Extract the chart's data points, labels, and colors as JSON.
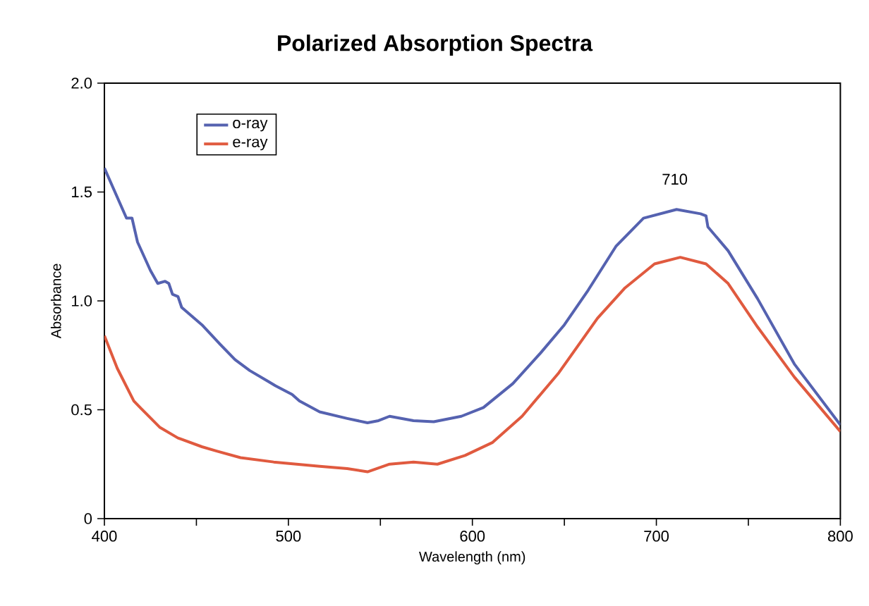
{
  "chart_data": {
    "type": "line",
    "title": "Polarized Absorption Spectra",
    "xlabel": "Wavelength (nm)",
    "ylabel": "Absorbance",
    "xlim": [
      400,
      800
    ],
    "ylim": [
      0,
      2.0
    ],
    "xticks": [
      400,
      {
        "value": 450,
        "label": null
      },
      500,
      {
        "value": 550,
        "label": null
      },
      600,
      {
        "value": 650,
        "label": null
      },
      700,
      {
        "value": 750,
        "label": null
      },
      800
    ],
    "yticks": [
      0,
      0.5,
      {
        "value": 1.0,
        "label": "1.0"
      },
      1.5,
      {
        "value": 2.0,
        "label": "2.0"
      }
    ],
    "legend": "top left",
    "marker": "none",
    "line_style": "solid",
    "grid": false,
    "annotations": [
      {
        "text": "710",
        "x": 710,
        "y": 1.42
      }
    ],
    "series": [
      {
        "name": "o-ray",
        "color": "#5562b0",
        "x": [
          400,
          412,
          415,
          418,
          425,
          429,
          433,
          435,
          437,
          440,
          442,
          453,
          463,
          471,
          479,
          489,
          493,
          502,
          506,
          517,
          532,
          543,
          549,
          555,
          568,
          579,
          594,
          606,
          622,
          637,
          650,
          663,
          678,
          693,
          711,
          724,
          727,
          728,
          739,
          755,
          775,
          800
        ],
        "values": [
          1.61,
          1.38,
          1.38,
          1.27,
          1.14,
          1.08,
          1.09,
          1.08,
          1.03,
          1.02,
          0.97,
          0.89,
          0.8,
          0.73,
          0.68,
          0.63,
          0.61,
          0.57,
          0.54,
          0.49,
          0.46,
          0.44,
          0.45,
          0.47,
          0.45,
          0.445,
          0.47,
          0.51,
          0.62,
          0.76,
          0.89,
          1.05,
          1.25,
          1.38,
          1.42,
          1.4,
          1.39,
          1.34,
          1.23,
          1.01,
          0.71,
          0.43
        ]
      },
      {
        "name": "e-ray",
        "color": "#e05a3f",
        "x": [
          400,
          407,
          416,
          420,
          430,
          440,
          453,
          461,
          474,
          492,
          517,
          532,
          543,
          555,
          568,
          581,
          596,
          611,
          627,
          647,
          668,
          683,
          699,
          713,
          727,
          739,
          755,
          775,
          800
        ],
        "values": [
          0.84,
          0.69,
          0.54,
          0.505,
          0.42,
          0.37,
          0.33,
          0.31,
          0.28,
          0.26,
          0.24,
          0.23,
          0.215,
          0.25,
          0.26,
          0.25,
          0.29,
          0.35,
          0.47,
          0.67,
          0.92,
          1.06,
          1.17,
          1.2,
          1.17,
          1.08,
          0.88,
          0.65,
          0.4
        ]
      }
    ]
  }
}
